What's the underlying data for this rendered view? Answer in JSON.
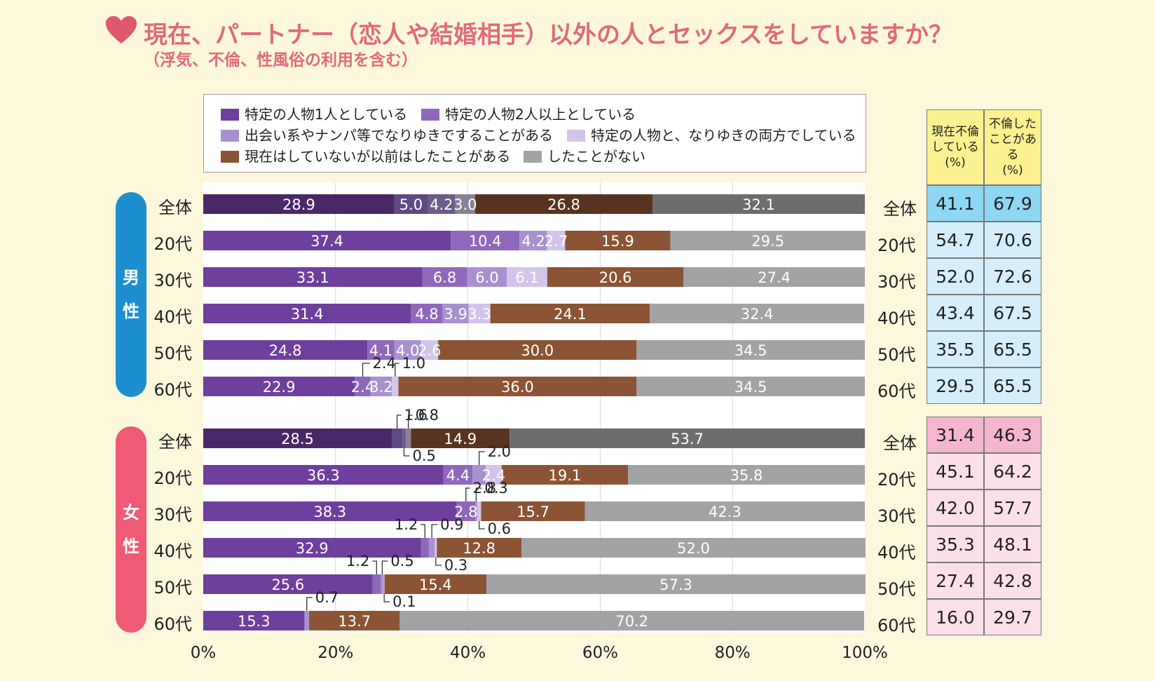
{
  "title": "現在、パートナー（恋人や結婚相手）以外の人とセックスをしていますか？",
  "subtitle": "（浮気、不倫、性風俗の利用を含む）",
  "colors": {
    "title": "#e06a7a",
    "male_pill": "#1d8fd0",
    "female_pill": "#ef5a75",
    "male_total_cell": "#8fd6f2",
    "male_cell": "#d4eefb",
    "female_total_cell": "#f4b6cf",
    "female_cell": "#fbe0ea",
    "table_header": "#fbf190"
  },
  "groups": {
    "male": "男性",
    "female": "女性"
  },
  "table": {
    "headers": [
      "現在不倫\nしている\n(%)",
      "不倫した\nことがある\n(%)"
    ]
  },
  "chart_data": {
    "type": "bar",
    "orientation": "horizontal",
    "stacked": true,
    "xlim": [
      0,
      100
    ],
    "xticks": [
      "0%",
      "20%",
      "40%",
      "60%",
      "80%",
      "100%"
    ],
    "categories": [
      "全体",
      "20代",
      "30代",
      "40代",
      "50代",
      "60代",
      "全体",
      "20代",
      "30代",
      "40代",
      "50代",
      "60代"
    ],
    "series": [
      {
        "name": "特定の人物1人としている",
        "color": "#6e3f9c",
        "total_color": "#4a2868",
        "values": [
          28.9,
          37.4,
          33.1,
          31.4,
          24.8,
          22.9,
          28.5,
          36.3,
          38.3,
          32.9,
          25.6,
          15.3
        ]
      },
      {
        "name": "特定の人物2人以上としている",
        "color": "#8f68bb",
        "total_color": "#5d4a83",
        "values": [
          5.0,
          10.4,
          6.8,
          4.8,
          4.1,
          2.4,
          1.6,
          4.4,
          2.8,
          1.2,
          1.2,
          0.0
        ]
      },
      {
        "name": "出会い系やナンパ等でなりゆきですることがある",
        "color": "#a991d0",
        "total_color": "#6b5c8a",
        "values": [
          4.2,
          4.2,
          6.0,
          3.9,
          4.0,
          3.2,
          0.5,
          2.0,
          0.3,
          0.9,
          0.5,
          0.7
        ]
      },
      {
        "name": "特定の人物と、なりゆきの両方でしている",
        "color": "#d3c5ea",
        "total_color": "#8b8198",
        "values": [
          3.0,
          2.7,
          6.1,
          3.3,
          2.6,
          1.0,
          0.8,
          2.4,
          0.6,
          0.3,
          0.1,
          0.0
        ]
      },
      {
        "name": "現在はしていないが以前はしたことがある",
        "color": "#8b5434",
        "total_color": "#5a3320",
        "values": [
          26.8,
          15.9,
          20.6,
          24.1,
          30.0,
          36.0,
          14.9,
          19.1,
          15.7,
          12.8,
          15.4,
          13.7
        ]
      },
      {
        "name": "したことがない",
        "color": "#a3a3a5",
        "total_color": "#6d6d70",
        "values": [
          32.1,
          29.5,
          27.4,
          32.4,
          34.5,
          34.5,
          53.7,
          35.8,
          42.3,
          52.0,
          57.3,
          70.2
        ]
      }
    ],
    "current_affair_pct": [
      "41.1",
      "54.7",
      "52.0",
      "43.4",
      "35.5",
      "29.5",
      "31.4",
      "45.1",
      "42.0",
      "35.3",
      "27.4",
      "16.0"
    ],
    "ever_affair_pct": [
      "67.9",
      "70.6",
      "72.6",
      "67.5",
      "65.5",
      "65.5",
      "46.3",
      "64.2",
      "57.7",
      "48.1",
      "42.8",
      "29.7"
    ],
    "segment_labels": [
      [
        "28.9",
        "5.0",
        "4.2",
        "3.0",
        "26.8",
        "32.1"
      ],
      [
        "37.4",
        "10.4",
        "4.2",
        "2.7",
        "15.9",
        "29.5"
      ],
      [
        "33.1",
        "6.8",
        "6.0",
        "6.1",
        "20.6",
        "27.4"
      ],
      [
        "31.4",
        "4.8",
        "3.9",
        "3.3",
        "24.1",
        "32.4"
      ],
      [
        "24.8",
        "4.1",
        "4.0",
        "2.6",
        "30.0",
        "34.5"
      ],
      [
        "22.9",
        "2.4",
        "3.2",
        "1.0",
        "36.0",
        "34.5"
      ],
      [
        "28.5",
        "1.6",
        "0.5",
        "0.8",
        "14.9",
        "53.7"
      ],
      [
        "36.3",
        "4.4",
        "2.0",
        "2.4",
        "19.1",
        "35.8"
      ],
      [
        "38.3",
        "2.8",
        "0.3",
        "0.6",
        "15.7",
        "42.3"
      ],
      [
        "32.9",
        "1.2",
        "0.9",
        "0.3",
        "12.8",
        "52.0"
      ],
      [
        "25.6",
        "1.2",
        "0.5",
        "0.1",
        "15.4",
        "57.3"
      ],
      [
        "15.3",
        "",
        "0.7",
        "",
        "13.7",
        "70.2"
      ]
    ]
  }
}
